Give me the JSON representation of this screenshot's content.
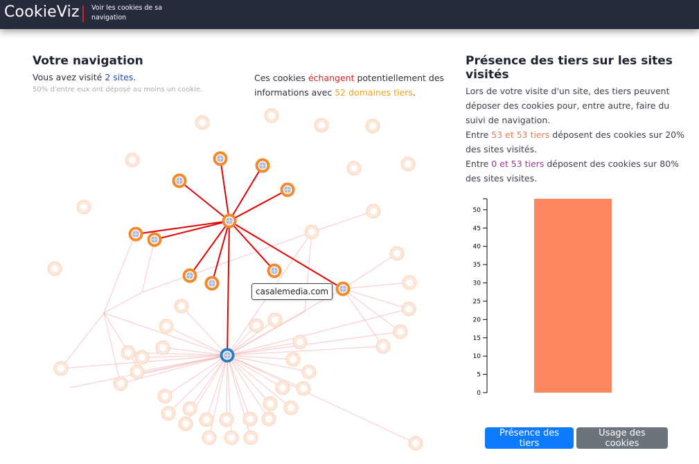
{
  "nav": {
    "brand": "CookieViz",
    "tagline": "Voir les cookies de sa navigation"
  },
  "left": {
    "title": "Votre navigation",
    "visited_prefix": "Vous avez visité ",
    "visited_link": "2 sites.",
    "note": "50% d'entre eux ont déposé au moins un cookie."
  },
  "middle": {
    "p1": "Ces cookies ",
    "exchange": "échangent",
    "p2": " potentiellement des informations avec ",
    "domains": "52 domaines tiers",
    "p3": "."
  },
  "right": {
    "title": "Présence des tiers sur les sites visités",
    "intro": "Lors de votre visite d'un site, des tiers peuvent déposer des cookies pour, entre autre, faire du suivi de navigation.",
    "l1_prefix": "Entre ",
    "l1_range": "53 et 53 tiers",
    "l1_suffix": " déposent des cookies sur 20% des sites visités.",
    "l2_prefix": "Entre ",
    "l2_range": "0 et 53 tiers",
    "l2_suffix": " déposent des cookies sur 80% des sites visites."
  },
  "tooltip": "casalemedia.com",
  "buttons": {
    "presence": "Présence des tiers",
    "usage": "Usage des cookies"
  },
  "chart_data": {
    "type": "bar",
    "categories": [
      ""
    ],
    "values": [
      53
    ],
    "ylim": [
      0,
      53
    ],
    "yticks": [
      0,
      5,
      10,
      15,
      20,
      25,
      30,
      35,
      40,
      45,
      50
    ],
    "bar_color": "#fd8860",
    "grid": false
  },
  "colors": {
    "navbar": "#262b3e",
    "link_strong": "#e00000",
    "link_faint": "#f4a8a8",
    "node_orange": "#f5892a",
    "node_blue": "#2a7cc4"
  }
}
